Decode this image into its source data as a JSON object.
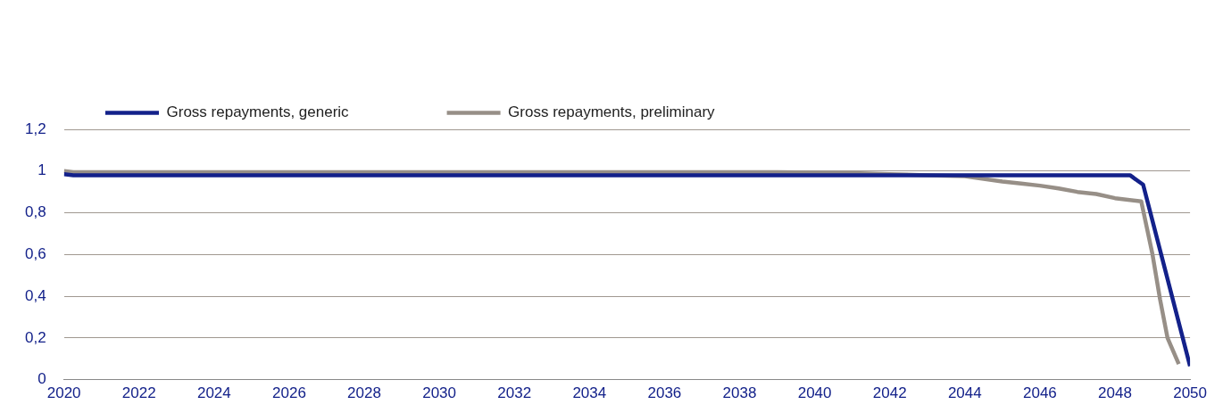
{
  "chart_data": {
    "type": "line",
    "xlim": [
      2020,
      2050
    ],
    "xticks": [
      2020,
      2022,
      2024,
      2026,
      2028,
      2030,
      2032,
      2034,
      2036,
      2038,
      2040,
      2042,
      2044,
      2046,
      2048,
      2050
    ],
    "ylim": [
      0,
      1.2
    ],
    "yticks": [
      {
        "value": 0,
        "label": "0"
      },
      {
        "value": 0.2,
        "label": "0,2"
      },
      {
        "value": 0.4,
        "label": "0,4"
      },
      {
        "value": 0.6,
        "label": "0,6"
      },
      {
        "value": 0.8,
        "label": "0,8"
      },
      {
        "value": 1,
        "label": "1"
      },
      {
        "value": 1.2,
        "label": "1,2"
      }
    ],
    "grid": "y",
    "legend": "top left",
    "marker": "none",
    "line_style": "solid",
    "series": [
      {
        "name": "Gross repayments, generic",
        "color": "#13218a",
        "x": [
          2020,
          2020.25,
          2030,
          2040,
          2048.4,
          2048.75,
          2050
        ],
        "values": [
          0.985,
          0.98,
          0.98,
          0.98,
          0.98,
          0.935,
          0.065
        ]
      },
      {
        "name": "Gross repayments, preliminary",
        "color": "#978f87",
        "x": [
          2020,
          2020.25,
          2030,
          2039,
          2041,
          2042,
          2043,
          2044,
          2045,
          2045.5,
          2046,
          2046.5,
          2047,
          2047.5,
          2048,
          2048.7,
          2049,
          2049.2,
          2049.4,
          2049.7
        ],
        "values": [
          1.0,
          0.995,
          0.995,
          0.995,
          0.99,
          0.985,
          0.98,
          0.975,
          0.95,
          0.94,
          0.93,
          0.917,
          0.9,
          0.89,
          0.87,
          0.855,
          0.6,
          0.386,
          0.2,
          0.075
        ]
      }
    ]
  }
}
